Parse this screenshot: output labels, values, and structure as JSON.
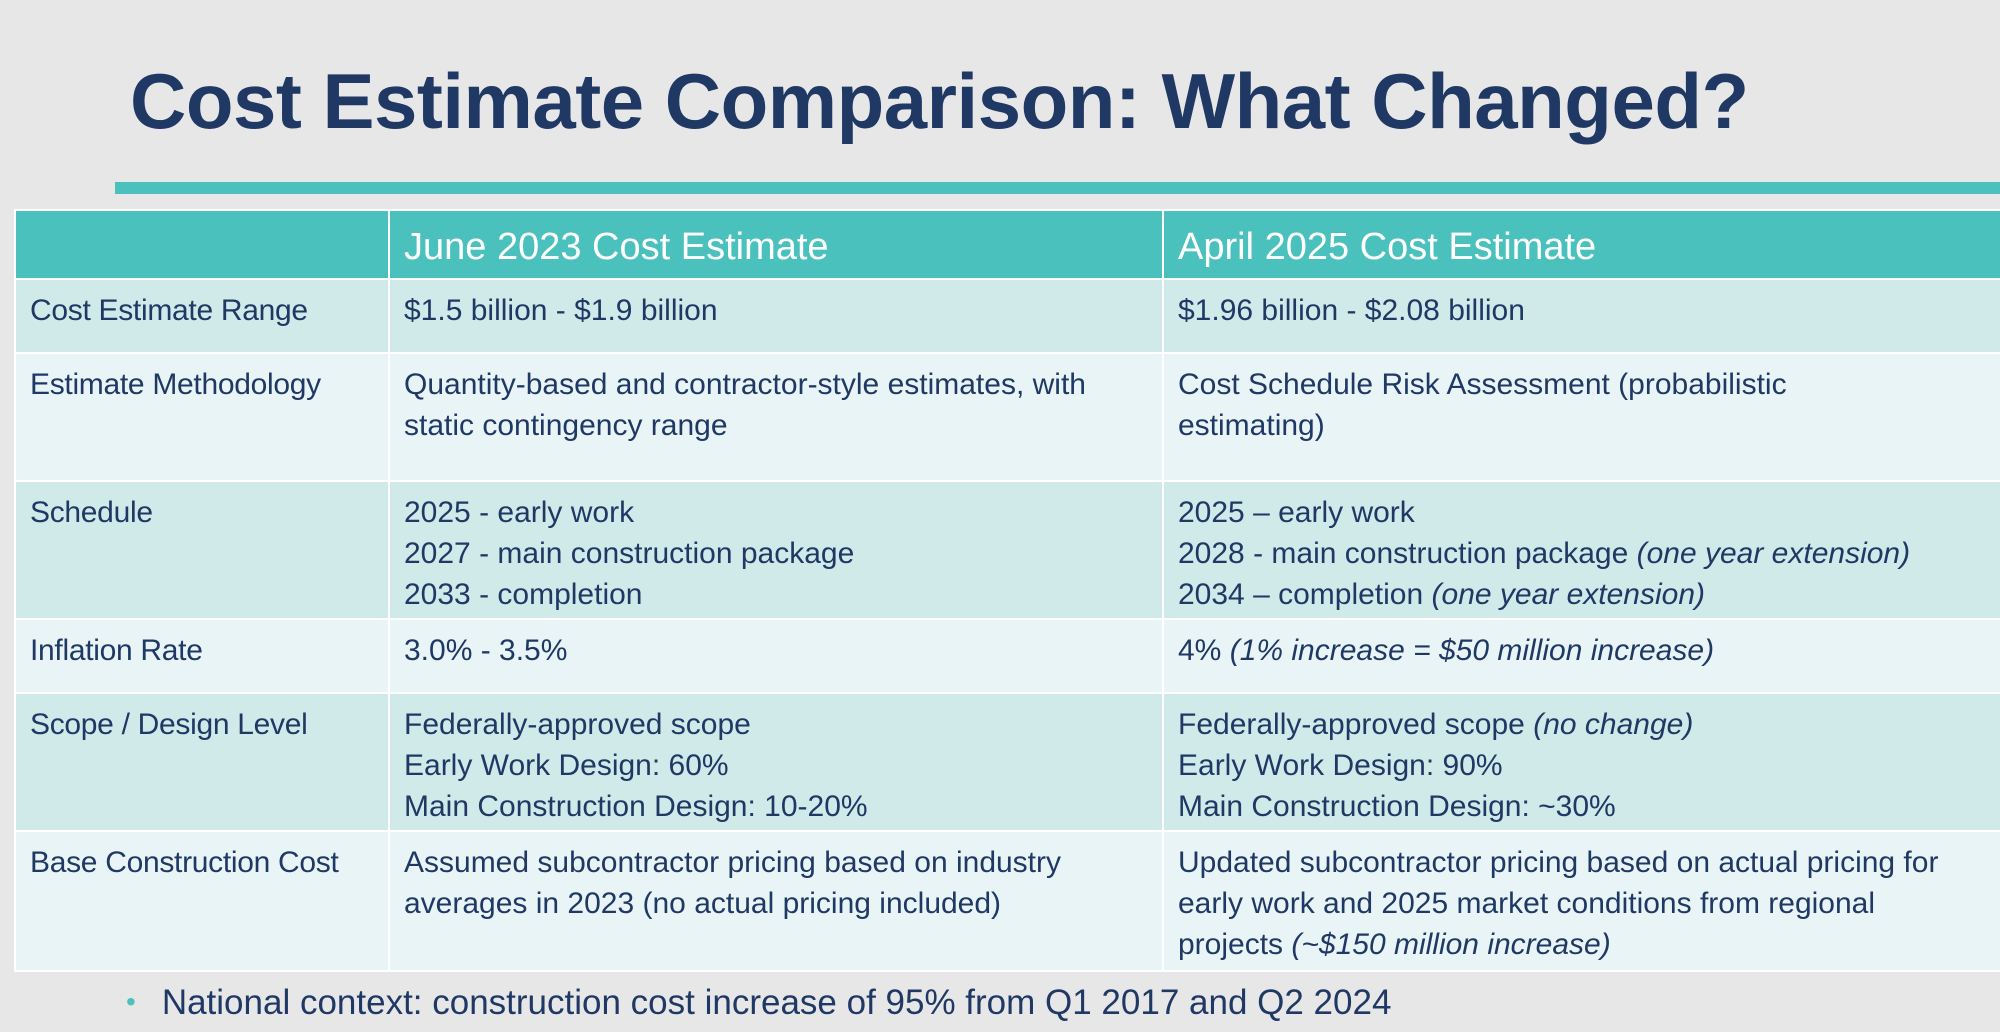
{
  "title": "Cost Estimate Comparison: What Changed?",
  "colors": {
    "accent": "#4bc1bd",
    "text": "#1f3864",
    "row_dark": "#d0e9e9",
    "row_light": "#e8f4f5"
  },
  "table": {
    "headers": [
      "",
      "June 2023 Cost Estimate",
      "April 2025 Cost Estimate"
    ],
    "rows": [
      {
        "label": "Cost Estimate Range",
        "june": [
          {
            "text": "$1.5 billion - $1.9 billion",
            "note": ""
          }
        ],
        "april": [
          {
            "text": "$1.96 billion - $2.08 billion",
            "note": ""
          }
        ]
      },
      {
        "label": "Estimate Methodology",
        "june": [
          {
            "text": "Quantity-based and contractor-style estimates, with static contingency range",
            "note": ""
          }
        ],
        "april": [
          {
            "text": "Cost Schedule Risk Assessment (probabilistic estimating)",
            "note": ""
          }
        ]
      },
      {
        "label": "Schedule",
        "june": [
          {
            "text": "2025 - early work",
            "note": ""
          },
          {
            "text": "2027 - main construction package",
            "note": ""
          },
          {
            "text": "2033 - completion",
            "note": ""
          }
        ],
        "april": [
          {
            "text": "2025 – early work",
            "note": ""
          },
          {
            "text": "2028 - main construction package ",
            "note": "(one year extension)"
          },
          {
            "text": "2034 – completion ",
            "note": "(one year extension)"
          }
        ]
      },
      {
        "label": "Inflation Rate",
        "june": [
          {
            "text": "3.0% - 3.5%",
            "note": ""
          }
        ],
        "april": [
          {
            "text": "4% ",
            "note": "(1% increase = $50 million increase)"
          }
        ]
      },
      {
        "label": "Scope / Design Level",
        "june": [
          {
            "text": "Federally-approved scope",
            "note": ""
          },
          {
            "text": "Early Work Design: 60%",
            "note": ""
          },
          {
            "text": "Main Construction Design: 10-20%",
            "note": ""
          }
        ],
        "april": [
          {
            "text": "Federally-approved scope ",
            "note": "(no change)"
          },
          {
            "text": "Early Work Design: 90%",
            "note": ""
          },
          {
            "text": "Main Construction Design: ~30%",
            "note": ""
          }
        ]
      },
      {
        "label": "Base Construction Cost",
        "june": [
          {
            "text": "Assumed subcontractor pricing based on industry averages in 2023 (no actual pricing included)",
            "note": ""
          }
        ],
        "april": [
          {
            "text": "Updated subcontractor pricing based on actual pricing for early work and 2025 market conditions from regional projects ",
            "note": "(~$150 million increase)"
          }
        ]
      }
    ]
  },
  "bullet": "National context: construction cost increase of 95% from Q1 2017 and Q2 2024"
}
